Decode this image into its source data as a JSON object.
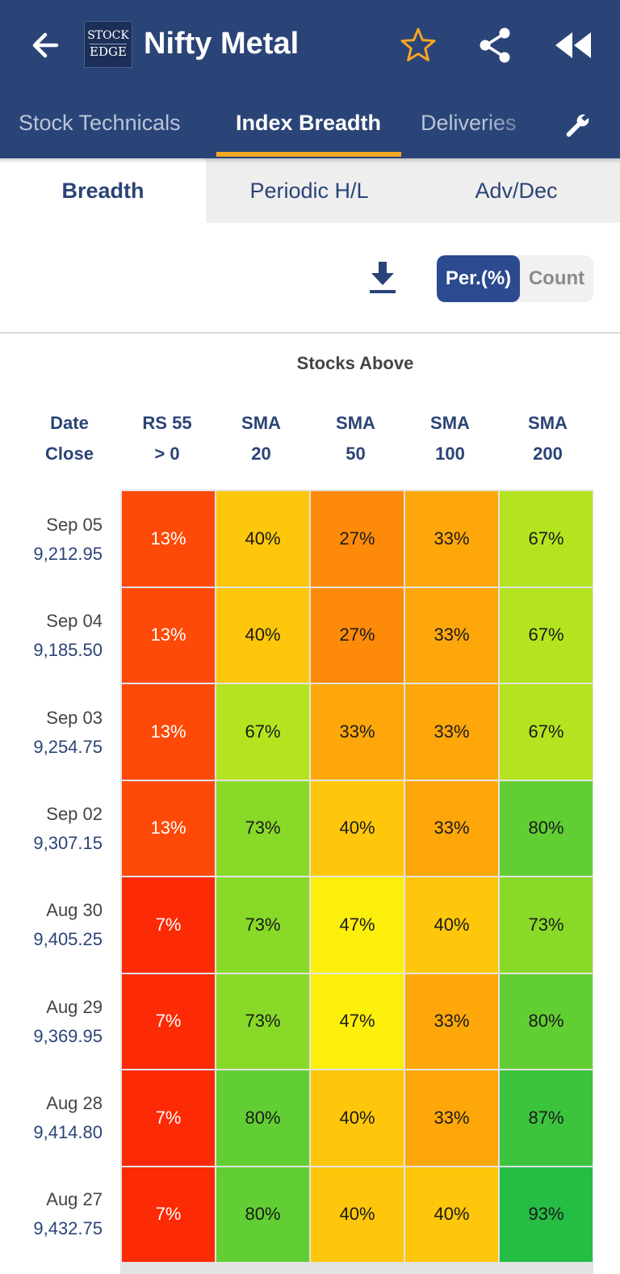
{
  "header": {
    "title": "Nifty Metal",
    "logo_line1": "STOCK",
    "logo_line2": "EDGE",
    "star_color": "#f5a623",
    "icons": [
      "back-arrow-icon",
      "star-icon",
      "share-icon",
      "rewind-icon",
      "wrench-icon"
    ]
  },
  "nav_tabs": [
    "Stock Technicals",
    "Index Breadth",
    "Deliveries"
  ],
  "active_nav_tab": "Index Breadth",
  "sub_tabs": [
    "Breadth",
    "Periodic H/L",
    "Adv/Dec"
  ],
  "active_sub_tab": "Breadth",
  "toggle": {
    "selected": "Per.(%)",
    "other": "Count"
  },
  "table": {
    "group_title": "Stocks Above",
    "headers": [
      {
        "line1": "Date",
        "line2": "Close"
      },
      {
        "line1": "RS 55",
        "line2": "> 0"
      },
      {
        "line1": "SMA",
        "line2": "20"
      },
      {
        "line1": "SMA",
        "line2": "50"
      },
      {
        "line1": "SMA",
        "line2": "100"
      },
      {
        "line1": "SMA",
        "line2": "200"
      }
    ],
    "rows": [
      {
        "date": "Sep 05",
        "close": "9,212.95",
        "cells": [
          "13%",
          "40%",
          "27%",
          "33%",
          "67%"
        ]
      },
      {
        "date": "Sep 04",
        "close": "9,185.50",
        "cells": [
          "13%",
          "40%",
          "27%",
          "33%",
          "67%"
        ]
      },
      {
        "date": "Sep 03",
        "close": "9,254.75",
        "cells": [
          "13%",
          "67%",
          "33%",
          "33%",
          "67%"
        ]
      },
      {
        "date": "Sep 02",
        "close": "9,307.15",
        "cells": [
          "13%",
          "73%",
          "40%",
          "33%",
          "80%"
        ]
      },
      {
        "date": "Aug 30",
        "close": "9,405.25",
        "cells": [
          "7%",
          "73%",
          "47%",
          "40%",
          "73%"
        ]
      },
      {
        "date": "Aug 29",
        "close": "9,369.95",
        "cells": [
          "7%",
          "73%",
          "47%",
          "33%",
          "80%"
        ]
      },
      {
        "date": "Aug 28",
        "close": "9,414.80",
        "cells": [
          "7%",
          "80%",
          "40%",
          "33%",
          "87%"
        ]
      },
      {
        "date": "Aug 27",
        "close": "9,432.75",
        "cells": [
          "7%",
          "80%",
          "40%",
          "40%",
          "93%"
        ]
      }
    ]
  },
  "colors": {
    "primary": "#2b4477",
    "accent": "#f5a623",
    "heat": {
      "7%": "#fc2a05",
      "13%": "#fd4a08",
      "27%": "#fe8a0a",
      "33%": "#fea70a",
      "40%": "#fec70b",
      "47%": "#fcef0c",
      "67%": "#b4e41f",
      "73%": "#89d929",
      "80%": "#61cf33",
      "87%": "#3cc43e",
      "93%": "#25bd44"
    },
    "light_text_values": [
      "7%",
      "13%"
    ]
  }
}
